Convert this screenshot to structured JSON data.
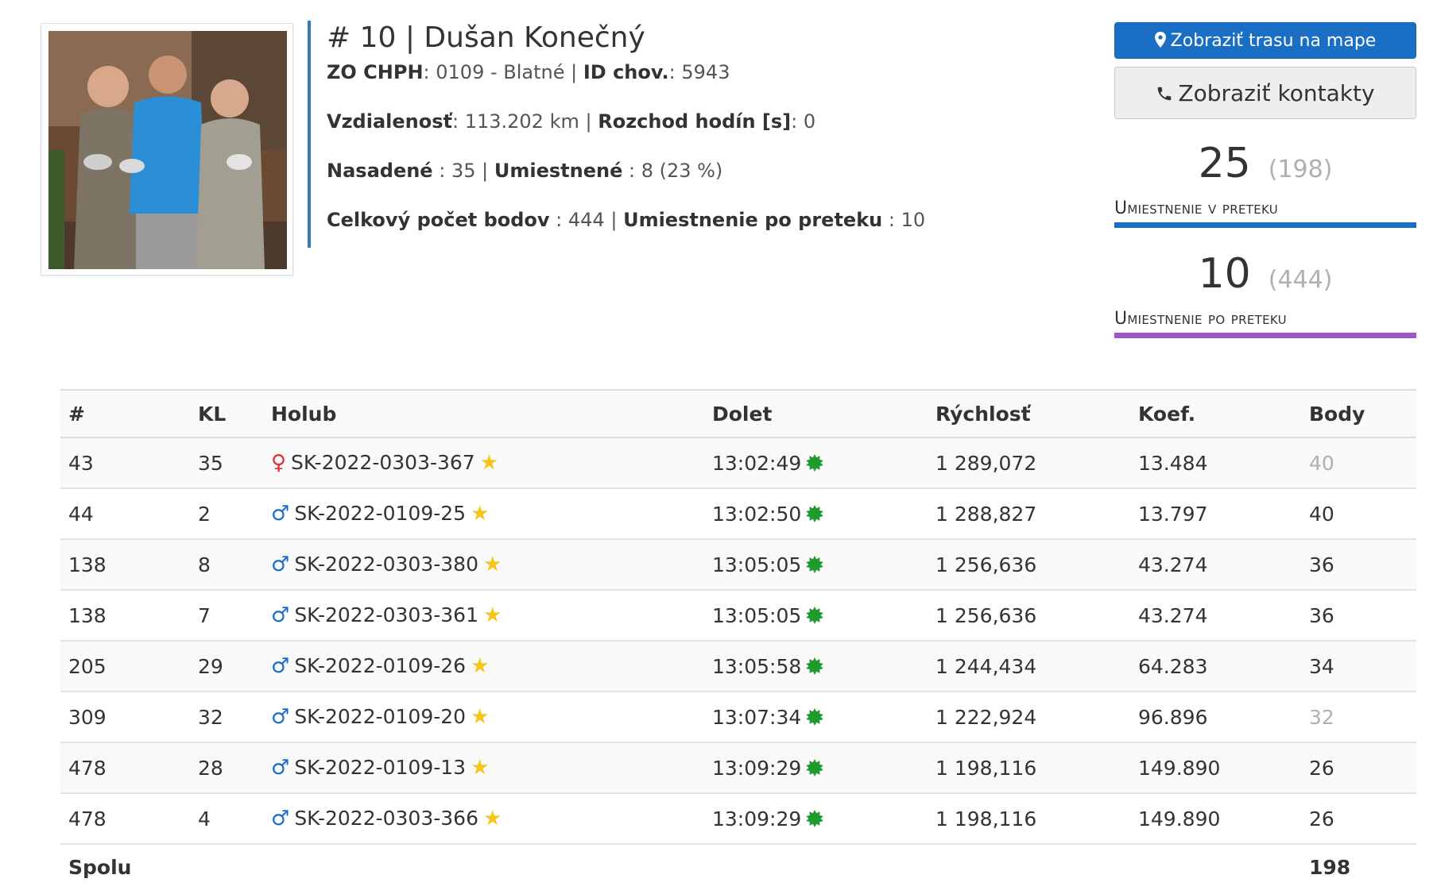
{
  "header": {
    "title": "# 10 | Dušan Konečný",
    "zo_label": "ZO CHPH",
    "zo_value": ": 0109 - Blatné",
    "id_label": "ID chov.",
    "id_value": ": 5943",
    "distance_label": "Vzdialenosť",
    "distance_value": ": 113.202 km",
    "clock_label": "Rozchod hodín [s]",
    "clock_value": ": 0",
    "nasadene_label": "Nasadené",
    "nasadene_value": " : 35",
    "umiestnene_label": "Umiestnené",
    "umiestnene_value": " : 8 (23 %)",
    "points_label": "Celkový počet bodov",
    "points_value": " : 444",
    "rank_after_label": "Umiestnenie po preteku",
    "rank_after_value": " : 10",
    "separator": "|"
  },
  "buttons": {
    "map": "Zobraziť trasu na mape",
    "contacts": "Zobraziť kontakty"
  },
  "stats": [
    {
      "value": "25",
      "sub": "(198)",
      "label": "Umiestnenie v preteku",
      "color": "#1a6fc4"
    },
    {
      "value": "10",
      "sub": "(444)",
      "label": "Umiestnenie po preteku",
      "color": "#9b59c6"
    }
  ],
  "table": {
    "headers": [
      "#",
      "KL",
      "Holub",
      "Dolet",
      "Rýchlosť",
      "Koef.",
      "Body"
    ],
    "rows": [
      {
        "rank": "43",
        "kl": "35",
        "sex": "♀",
        "pigeon": "SK-2022-0303-367",
        "time": "13:02:49",
        "speed": "1 289,072",
        "coef": "13.484",
        "points": "40",
        "muted": true
      },
      {
        "rank": "44",
        "kl": "2",
        "sex": "♂",
        "pigeon": "SK-2022-0109-25",
        "time": "13:02:50",
        "speed": "1 288,827",
        "coef": "13.797",
        "points": "40",
        "muted": false
      },
      {
        "rank": "138",
        "kl": "8",
        "sex": "♂",
        "pigeon": "SK-2022-0303-380",
        "time": "13:05:05",
        "speed": "1 256,636",
        "coef": "43.274",
        "points": "36",
        "muted": false
      },
      {
        "rank": "138",
        "kl": "7",
        "sex": "♂",
        "pigeon": "SK-2022-0303-361",
        "time": "13:05:05",
        "speed": "1 256,636",
        "coef": "43.274",
        "points": "36",
        "muted": false
      },
      {
        "rank": "205",
        "kl": "29",
        "sex": "♂",
        "pigeon": "SK-2022-0109-26",
        "time": "13:05:58",
        "speed": "1 244,434",
        "coef": "64.283",
        "points": "34",
        "muted": false
      },
      {
        "rank": "309",
        "kl": "32",
        "sex": "♂",
        "pigeon": "SK-2022-0109-20",
        "time": "13:07:34",
        "speed": "1 222,924",
        "coef": "96.896",
        "points": "32",
        "muted": true
      },
      {
        "rank": "478",
        "kl": "28",
        "sex": "♂",
        "pigeon": "SK-2022-0109-13",
        "time": "13:09:29",
        "speed": "1 198,116",
        "coef": "149.890",
        "points": "26",
        "muted": false
      },
      {
        "rank": "478",
        "kl": "4",
        "sex": "♂",
        "pigeon": "SK-2022-0303-366",
        "time": "13:09:29",
        "speed": "1 198,116",
        "coef": "149.890",
        "points": "26",
        "muted": false
      }
    ],
    "footer_label": "Spolu",
    "footer_total": "198"
  },
  "icons": {
    "map_marker": "map-marker-icon",
    "phone": "phone-icon",
    "female": "female-icon",
    "male": "male-icon",
    "star": "star-icon",
    "status": "green-dot-icon"
  },
  "colors": {
    "primary": "#1a6fc4",
    "purple": "#9b59c6",
    "female": "#e0303a",
    "star": "#f5c518",
    "status_green": "#1e9a2e"
  }
}
